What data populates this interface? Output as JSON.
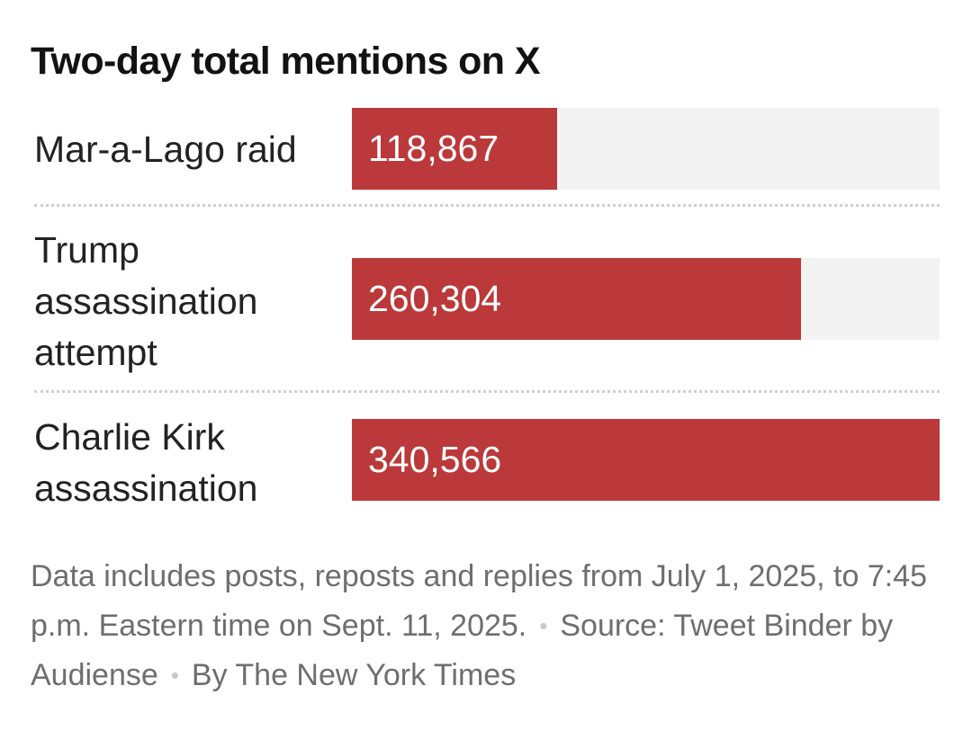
{
  "chart_data": {
    "type": "bar",
    "orientation": "horizontal",
    "title": "Two-day total mentions on X",
    "categories": [
      "Mar-a-Lago raid",
      "Trump\nassassination\nattempt",
      "Charlie Kirk\nassassination"
    ],
    "values": [
      118867,
      260304,
      340566
    ],
    "value_labels": [
      "118,867",
      "260,304",
      "340,566"
    ],
    "xlim": [
      0,
      340566
    ],
    "xlabel": "",
    "ylabel": "",
    "grid": false,
    "bar_color": "#bb393a",
    "track_color": "#f3f3f3"
  },
  "footnote": {
    "note": "Data includes posts, reposts and replies from July 1, 2025, to 7:45 p.m. Eastern time on Sept. 11, 2025.",
    "separator": "•",
    "source": "Source: Tweet Binder by Audiense",
    "credit": "By The New York Times"
  }
}
